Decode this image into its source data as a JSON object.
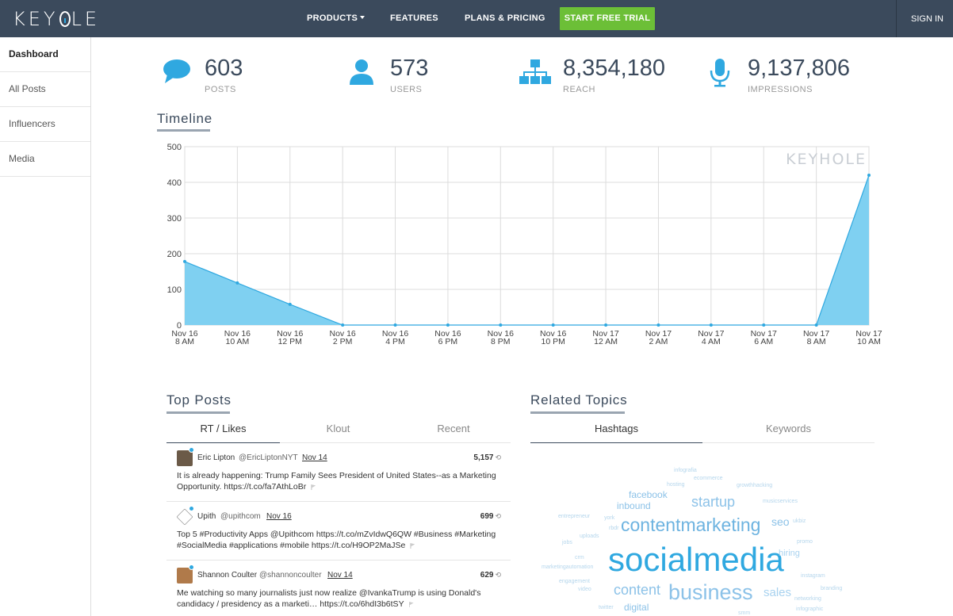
{
  "brand": {
    "logo_pre": "KEY",
    "logo_post": "LE"
  },
  "nav": {
    "products": "PRODUCTS",
    "features": "FEATURES",
    "pricing": "PLANS & PRICING",
    "trial": "START FREE TRIAL",
    "signin": "SIGN IN"
  },
  "sidebar": {
    "items": [
      {
        "label": "Dashboard"
      },
      {
        "label": "All Posts"
      },
      {
        "label": "Influencers"
      },
      {
        "label": "Media"
      }
    ]
  },
  "stats": [
    {
      "value": "603",
      "label": "POSTS",
      "icon": "chat-bubble-icon"
    },
    {
      "value": "573",
      "label": "USERS",
      "icon": "user-icon"
    },
    {
      "value": "8,354,180",
      "label": "REACH",
      "icon": "network-icon"
    },
    {
      "value": "9,137,806",
      "label": "IMPRESSIONS",
      "icon": "microphone-icon"
    }
  ],
  "colors": {
    "accent": "#2fa8e0",
    "fill": "#7fd0f1",
    "nav_bg": "#3b4a5c",
    "trial_green": "#6cbf37"
  },
  "timeline": {
    "title": "Timeline"
  },
  "chart_data": {
    "type": "area",
    "title": "",
    "xlabel": "",
    "ylabel": "",
    "ylim": [
      0,
      500
    ],
    "yticks": [
      0,
      100,
      200,
      300,
      400,
      500
    ],
    "grid": true,
    "watermark": "KEYHOLE",
    "categories": [
      [
        "Nov 16",
        "8 AM"
      ],
      [
        "Nov 16",
        "10 AM"
      ],
      [
        "Nov 16",
        "12 PM"
      ],
      [
        "Nov 16",
        "2 PM"
      ],
      [
        "Nov 16",
        "4 PM"
      ],
      [
        "Nov 16",
        "6 PM"
      ],
      [
        "Nov 16",
        "8 PM"
      ],
      [
        "Nov 16",
        "10 PM"
      ],
      [
        "Nov 17",
        "12 AM"
      ],
      [
        "Nov 17",
        "2 AM"
      ],
      [
        "Nov 17",
        "4 AM"
      ],
      [
        "Nov 17",
        "6 AM"
      ],
      [
        "Nov 17",
        "8 AM"
      ],
      [
        "Nov 17",
        "10 AM"
      ]
    ],
    "values": [
      178,
      118,
      58,
      0,
      0,
      0,
      0,
      0,
      0,
      0,
      0,
      0,
      0,
      420
    ]
  },
  "top_posts": {
    "title": "Top Posts",
    "tabs": [
      "RT / Likes",
      "Klout",
      "Recent"
    ],
    "posts": [
      {
        "name": "Eric Lipton",
        "handle": "@EricLiptonNYT",
        "date": "Nov 14",
        "count": "5,157",
        "text": "It is already happening: Trump Family Sees President of United States--as a Marketing Opportunity. https://t.co/fa7AthLoBr"
      },
      {
        "name": "Upith",
        "handle": "@upithcom",
        "date": "Nov 16",
        "count": "699",
        "text": "Top 5 #Productivity Apps @Upithcom https://t.co/mZvIdwQ6QW #Business #Marketing #SocialMedia #applications #mobile https://t.co/H9OP2MaJSe"
      },
      {
        "name": "Shannon Coulter",
        "handle": "@shannoncoulter",
        "date": "Nov 14",
        "count": "629",
        "text": "Me watching so many journalists just now realize @IvankaTrump is using Donald's candidacy / presidency as a marketi… https://t.co/6hdI3b6tSY"
      }
    ]
  },
  "related": {
    "title": "Related Topics",
    "tabs": [
      "Hashtags",
      "Keywords"
    ],
    "words": [
      {
        "text": "socialmedia",
        "size": 42,
        "color": "#2fa8e0"
      },
      {
        "text": "contentmarketing",
        "size": 23,
        "color": "#6db3e0"
      },
      {
        "text": "business",
        "size": 27,
        "color": "#8cc2e8"
      },
      {
        "text": "startup",
        "size": 18,
        "color": "#8cc2e8"
      },
      {
        "text": "content",
        "size": 18,
        "color": "#8cc2e8"
      },
      {
        "text": "sales",
        "size": 15,
        "color": "#a8d2ef"
      },
      {
        "text": "facebook",
        "size": 12,
        "color": "#8cc2e8"
      },
      {
        "text": "inbound",
        "size": 12,
        "color": "#8cc2e8"
      },
      {
        "text": "seo",
        "size": 14,
        "color": "#8cc2e8"
      },
      {
        "text": "hiring",
        "size": 11,
        "color": "#a8d2ef"
      },
      {
        "text": "digital",
        "size": 12,
        "color": "#8cc2e8"
      },
      {
        "text": "infografia",
        "size": 7,
        "color": "#b5d6ec"
      },
      {
        "text": "ecommerce",
        "size": 7,
        "color": "#b5d6ec"
      },
      {
        "text": "hosting",
        "size": 7,
        "color": "#b5d6ec"
      },
      {
        "text": "growthhacking",
        "size": 7,
        "color": "#b5d6ec"
      },
      {
        "text": "musicservices",
        "size": 7,
        "color": "#b5d6ec"
      },
      {
        "text": "entrepreneur",
        "size": 7,
        "color": "#b5d6ec"
      },
      {
        "text": "york",
        "size": 7,
        "color": "#b5d6ec"
      },
      {
        "text": "rbdr",
        "size": 7,
        "color": "#b5d6ec"
      },
      {
        "text": "ukbiz",
        "size": 7,
        "color": "#b5d6ec"
      },
      {
        "text": "uploads",
        "size": 7,
        "color": "#b5d6ec"
      },
      {
        "text": "jobs",
        "size": 7,
        "color": "#b5d6ec"
      },
      {
        "text": "promo",
        "size": 7,
        "color": "#b5d6ec"
      },
      {
        "text": "crm",
        "size": 7,
        "color": "#b5d6ec"
      },
      {
        "text": "marketingautomation",
        "size": 7,
        "color": "#b5d6ec"
      },
      {
        "text": "instagram",
        "size": 7,
        "color": "#b5d6ec"
      },
      {
        "text": "engagement",
        "size": 7,
        "color": "#b5d6ec"
      },
      {
        "text": "video",
        "size": 7,
        "color": "#b5d6ec"
      },
      {
        "text": "branding",
        "size": 7,
        "color": "#b5d6ec"
      },
      {
        "text": "networking",
        "size": 7,
        "color": "#b5d6ec"
      },
      {
        "text": "twitter",
        "size": 7,
        "color": "#b5d6ec"
      },
      {
        "text": "infographic",
        "size": 7,
        "color": "#b5d6ec"
      },
      {
        "text": "smm",
        "size": 7,
        "color": "#b5d6ec"
      }
    ]
  }
}
